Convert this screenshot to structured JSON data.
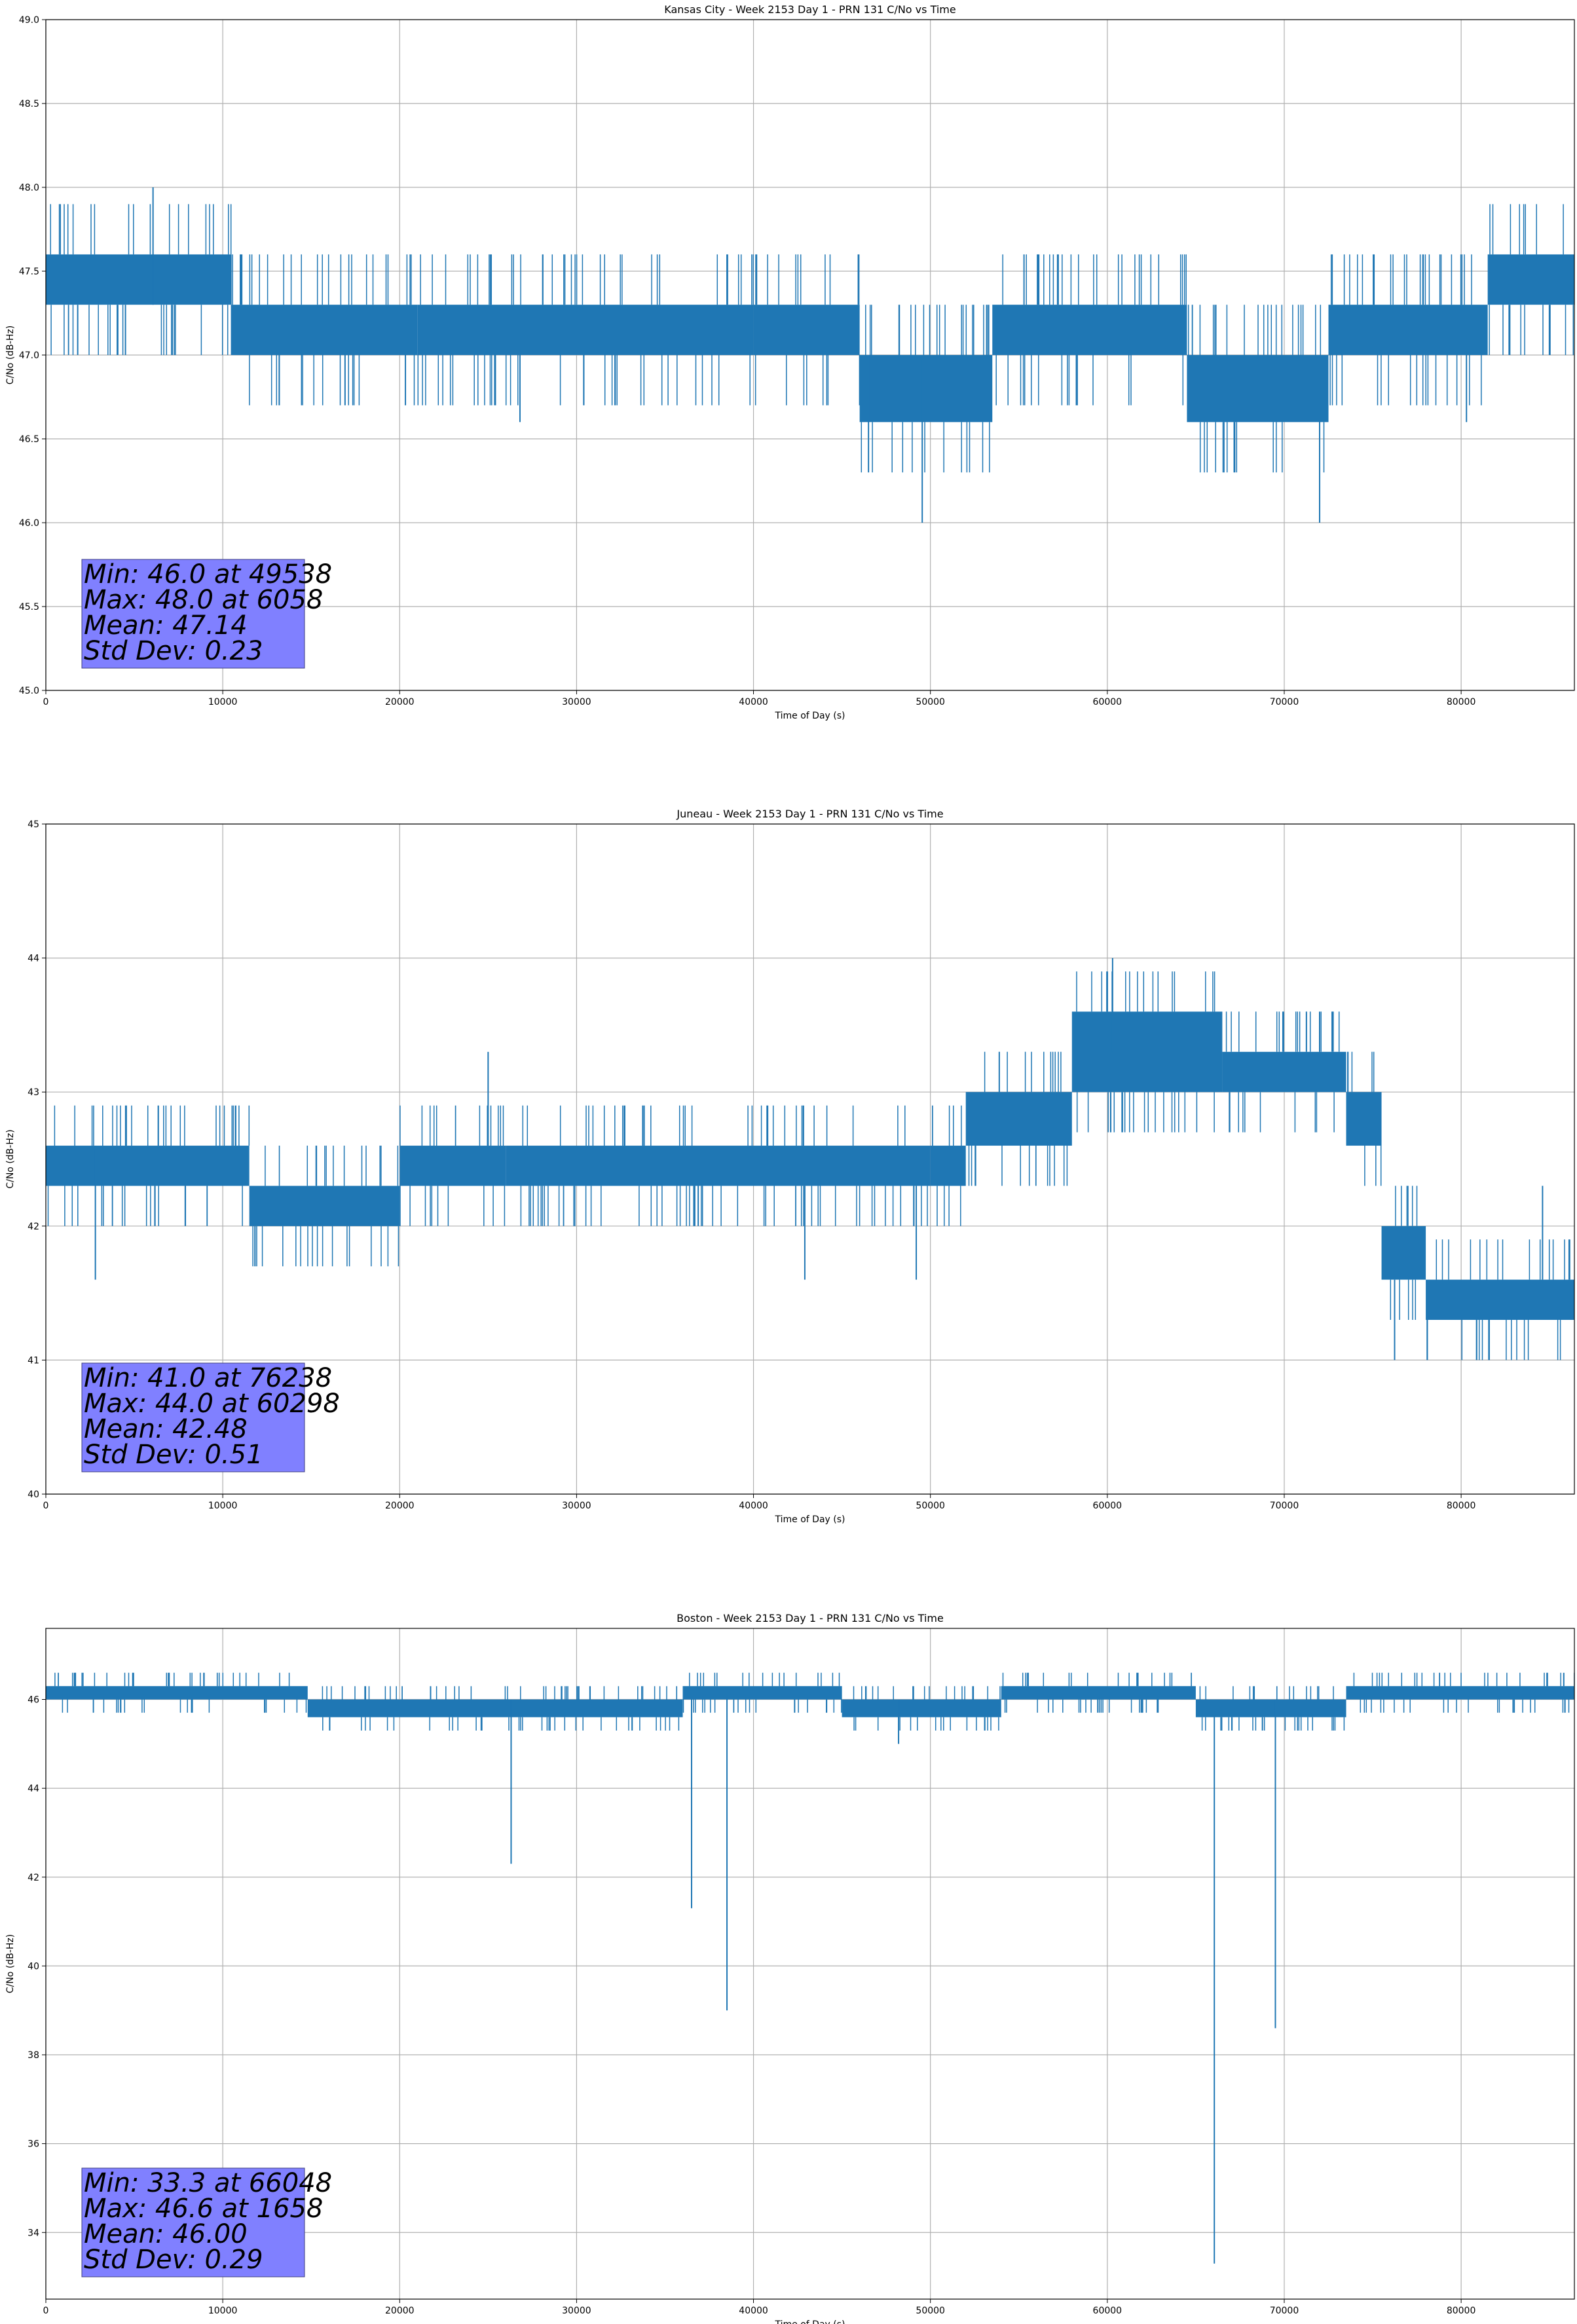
{
  "figure": {
    "background": "#ffffff",
    "series_color": "#1f77b4",
    "stats_box_color": "#8080ff",
    "grid_color": "#b0b0b0"
  },
  "chart_data": [
    {
      "type": "line",
      "title": "Kansas City - Week 2153 Day 1 - PRN 131 C/No vs Time",
      "xlabel": "Time of Day (s)",
      "ylabel": "C/No (dB-Hz)",
      "xlim": [
        0,
        86400
      ],
      "ylim": [
        45.0,
        49.0
      ],
      "xticks": [
        0,
        10000,
        20000,
        30000,
        40000,
        50000,
        60000,
        70000,
        80000
      ],
      "yticks": [
        45.0,
        45.5,
        46.0,
        46.5,
        47.0,
        47.5,
        48.0,
        48.5,
        49.0
      ],
      "ytick_labels": [
        "45.0",
        "45.5",
        "46.0",
        "46.5",
        "47.0",
        "47.5",
        "48.0",
        "48.5",
        "49.0"
      ],
      "grid": true,
      "bands": [
        {
          "x": [
            0,
            10500
          ],
          "lo": 47.3,
          "hi": 47.6
        },
        {
          "x": [
            10500,
            21000
          ],
          "lo": 47.0,
          "hi": 47.3
        },
        {
          "x": [
            21000,
            40000
          ],
          "lo": 47.0,
          "hi": 47.3
        },
        {
          "x": [
            40000,
            46000
          ],
          "lo": 47.0,
          "hi": 47.3
        },
        {
          "x": [
            46000,
            53500
          ],
          "lo": 46.6,
          "hi": 47.0
        },
        {
          "x": [
            53500,
            64500
          ],
          "lo": 47.0,
          "hi": 47.3
        },
        {
          "x": [
            64500,
            72500
          ],
          "lo": 46.6,
          "hi": 47.0
        },
        {
          "x": [
            72500,
            81500
          ],
          "lo": 47.0,
          "hi": 47.3
        },
        {
          "x": [
            81500,
            86400
          ],
          "lo": 47.3,
          "hi": 47.6
        }
      ],
      "spikes": [
        {
          "x": 6058,
          "lo": 47.3,
          "hi": 48.0
        },
        {
          "x": 46500,
          "lo": 46.3,
          "hi": 47.0
        },
        {
          "x": 49538,
          "lo": 46.0,
          "hi": 47.0
        },
        {
          "x": 72000,
          "lo": 46.0,
          "hi": 47.0
        },
        {
          "x": 26800,
          "lo": 46.6,
          "hi": 47.0
        },
        {
          "x": 80300,
          "lo": 46.6,
          "hi": 47.0
        },
        {
          "x": 1800,
          "lo": 47.0,
          "hi": 47.3
        },
        {
          "x": 4500,
          "lo": 47.0,
          "hi": 47.3
        }
      ],
      "stats": [
        "Min: 46.0 at 49538",
        "Max: 48.0 at 6058",
        "Mean: 47.14",
        "Std Dev: 0.23"
      ]
    },
    {
      "type": "line",
      "title": "Juneau - Week 2153 Day 1 - PRN 131 C/No vs Time",
      "xlabel": "Time of Day (s)",
      "ylabel": "C/No (dB-Hz)",
      "xlim": [
        0,
        86400
      ],
      "ylim": [
        40,
        45
      ],
      "xticks": [
        0,
        10000,
        20000,
        30000,
        40000,
        50000,
        60000,
        70000,
        80000
      ],
      "yticks": [
        40,
        41,
        42,
        43,
        44,
        45
      ],
      "ytick_labels": [
        "40",
        "41",
        "42",
        "43",
        "44",
        "45"
      ],
      "grid": true,
      "bands": [
        {
          "x": [
            0,
            11500
          ],
          "lo": 42.3,
          "hi": 42.6
        },
        {
          "x": [
            11500,
            20000
          ],
          "lo": 42.0,
          "hi": 42.3
        },
        {
          "x": [
            20000,
            26000
          ],
          "lo": 42.3,
          "hi": 42.6
        },
        {
          "x": [
            26000,
            50000
          ],
          "lo": 42.3,
          "hi": 42.6
        },
        {
          "x": [
            50000,
            52000
          ],
          "lo": 42.3,
          "hi": 42.6
        },
        {
          "x": [
            52000,
            58000
          ],
          "lo": 42.6,
          "hi": 43.0
        },
        {
          "x": [
            58000,
            66500
          ],
          "lo": 43.0,
          "hi": 43.6
        },
        {
          "x": [
            66500,
            73500
          ],
          "lo": 43.0,
          "hi": 43.3
        },
        {
          "x": [
            73500,
            75500
          ],
          "lo": 42.6,
          "hi": 43.0
        },
        {
          "x": [
            75500,
            78000
          ],
          "lo": 41.6,
          "hi": 42.0
        },
        {
          "x": [
            78000,
            86400
          ],
          "lo": 41.3,
          "hi": 41.6
        }
      ],
      "spikes": [
        {
          "x": 60298,
          "lo": 43.3,
          "hi": 44.0
        },
        {
          "x": 76238,
          "lo": 41.0,
          "hi": 41.6
        },
        {
          "x": 2800,
          "lo": 41.6,
          "hi": 42.6
        },
        {
          "x": 25000,
          "lo": 42.6,
          "hi": 43.3
        },
        {
          "x": 42900,
          "lo": 41.6,
          "hi": 42.3
        },
        {
          "x": 49200,
          "lo": 41.6,
          "hi": 42.3
        },
        {
          "x": 72000,
          "lo": 43.3,
          "hi": 43.6
        },
        {
          "x": 84600,
          "lo": 41.6,
          "hi": 42.3
        }
      ],
      "stats": [
        "Min: 41.0 at 76238",
        "Max: 44.0 at 60298",
        "Mean: 42.48",
        "Std Dev: 0.51"
      ]
    },
    {
      "type": "line",
      "title": "Boston - Week 2153 Day 1 - PRN 131 C/No vs Time",
      "xlabel": "Time of Day (s)",
      "ylabel": "C/No (dB-Hz)",
      "xlim": [
        0,
        86400
      ],
      "ylim": [
        32.5,
        47.6
      ],
      "xticks": [
        0,
        10000,
        20000,
        30000,
        40000,
        50000,
        60000,
        70000,
        80000
      ],
      "yticks": [
        34,
        36,
        38,
        40,
        42,
        44,
        46
      ],
      "ytick_labels": [
        "34",
        "36",
        "38",
        "40",
        "42",
        "44",
        "46"
      ],
      "grid": true,
      "bands": [
        {
          "x": [
            0,
            14800
          ],
          "lo": 46.0,
          "hi": 46.3
        },
        {
          "x": [
            14800,
            36000
          ],
          "lo": 45.6,
          "hi": 46.0
        },
        {
          "x": [
            36000,
            45000
          ],
          "lo": 46.0,
          "hi": 46.3
        },
        {
          "x": [
            45000,
            54000
          ],
          "lo": 45.6,
          "hi": 46.0
        },
        {
          "x": [
            54000,
            65000
          ],
          "lo": 46.0,
          "hi": 46.3
        },
        {
          "x": [
            65000,
            73500
          ],
          "lo": 45.6,
          "hi": 46.0
        },
        {
          "x": [
            73500,
            86400
          ],
          "lo": 46.0,
          "hi": 46.3
        }
      ],
      "spikes": [
        {
          "x": 1658,
          "lo": 46.3,
          "hi": 46.6
        },
        {
          "x": 26300,
          "lo": 42.3,
          "hi": 46.0
        },
        {
          "x": 36500,
          "lo": 41.3,
          "hi": 46.0
        },
        {
          "x": 38500,
          "lo": 39.0,
          "hi": 46.0
        },
        {
          "x": 48200,
          "lo": 45.0,
          "hi": 46.0
        },
        {
          "x": 66048,
          "lo": 33.3,
          "hi": 46.0
        },
        {
          "x": 69500,
          "lo": 38.6,
          "hi": 46.0
        },
        {
          "x": 85800,
          "lo": 46.3,
          "hi": 46.6
        }
      ],
      "stats": [
        "Min: 33.3 at 66048",
        "Max: 46.6 at 1658",
        "Mean: 46.00",
        "Std Dev: 0.29"
      ]
    }
  ]
}
